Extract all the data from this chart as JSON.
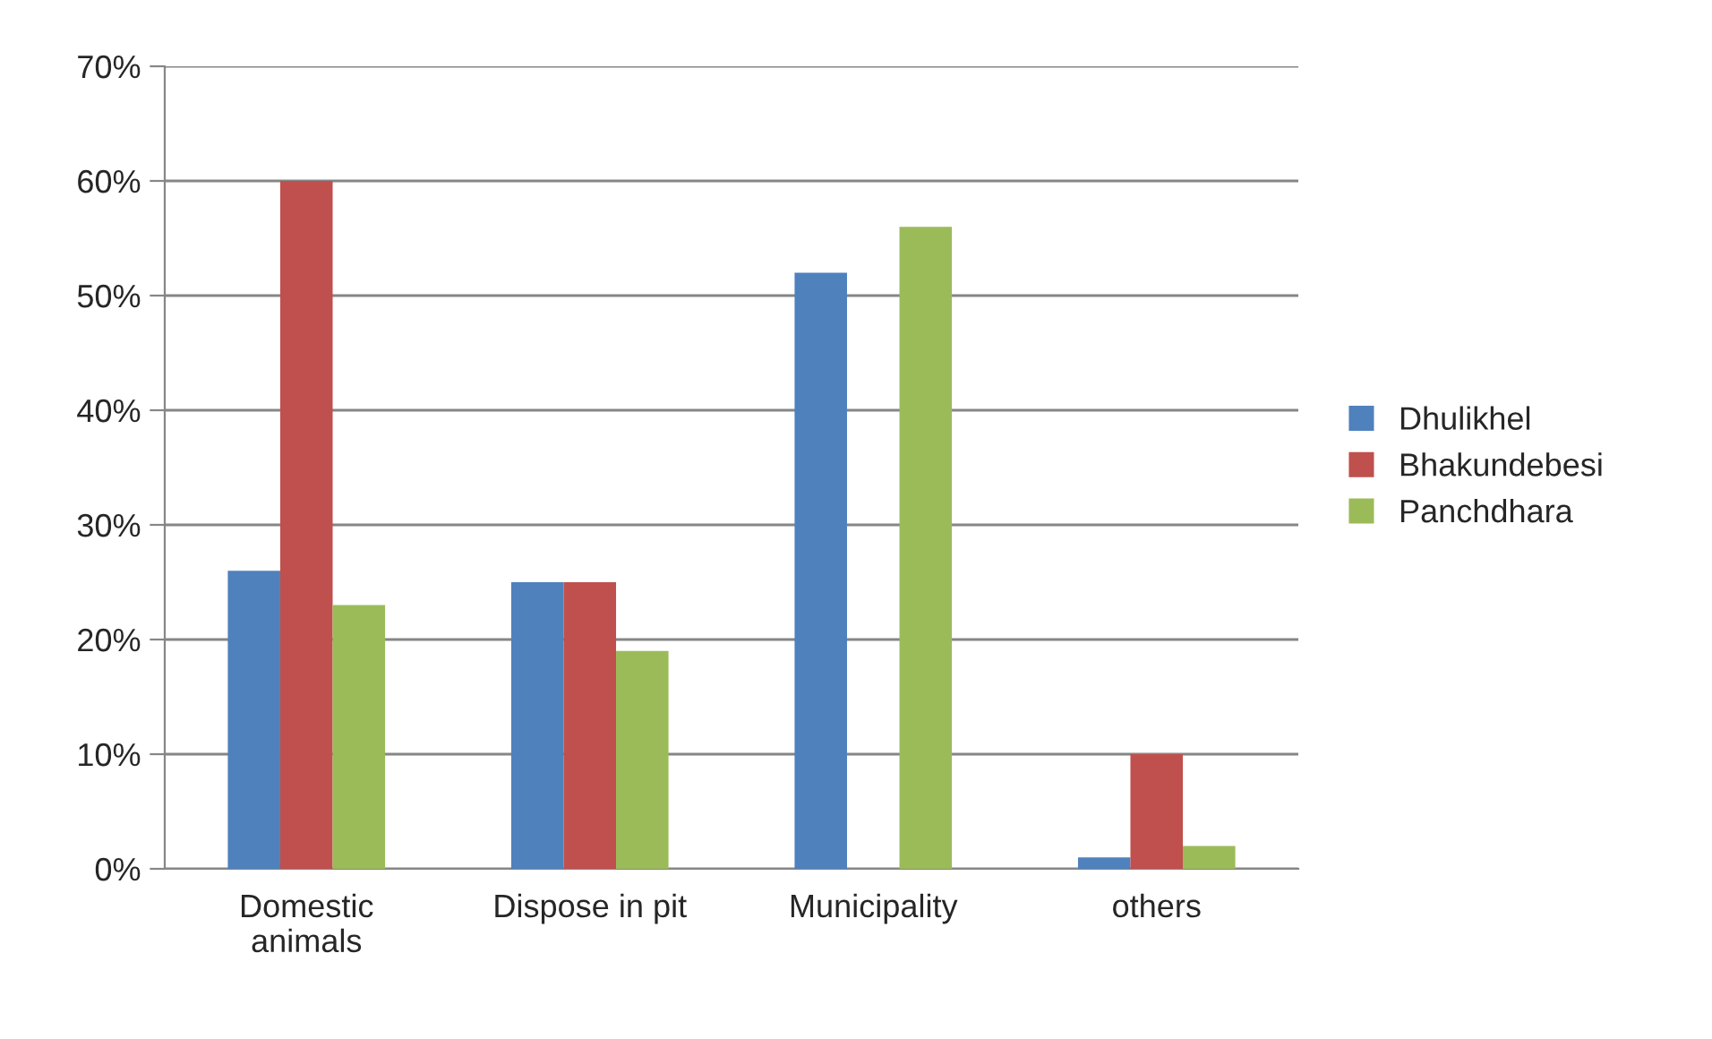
{
  "chart_data": {
    "type": "bar",
    "categories": [
      "Domestic animals",
      "Dispose in pit",
      "Municipality",
      "others"
    ],
    "series": [
      {
        "name": "Dhulikhel",
        "color": "#4f81bd",
        "values": [
          26,
          25,
          52,
          1
        ]
      },
      {
        "name": "Bhakundebesi",
        "color": "#c0504d",
        "values": [
          60,
          25,
          null,
          10
        ]
      },
      {
        "name": "Panchdhara",
        "color": "#9bbb59",
        "values": [
          23,
          19,
          56,
          2
        ]
      }
    ],
    "ylim": [
      0,
      70
    ],
    "yticks": [
      {
        "value": 0,
        "label": "0%"
      },
      {
        "value": 10,
        "label": "10%"
      },
      {
        "value": 20,
        "label": "20%"
      },
      {
        "value": 30,
        "label": "30%"
      },
      {
        "value": 40,
        "label": "40%"
      },
      {
        "value": 50,
        "label": "50%"
      },
      {
        "value": 60,
        "label": "60%"
      },
      {
        "value": 70,
        "label": "70%"
      }
    ],
    "grid": "y",
    "legend": "right"
  }
}
